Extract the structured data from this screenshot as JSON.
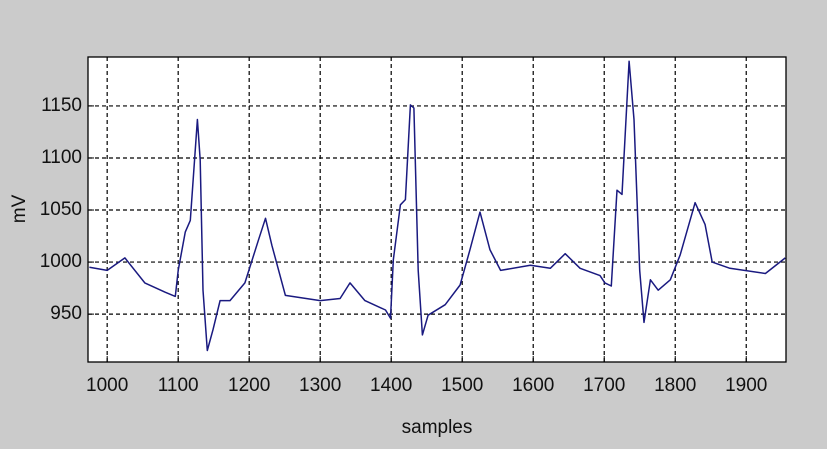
{
  "chart_data": {
    "type": "line",
    "xlabel": "samples",
    "ylabel": "mV",
    "x": [
      975,
      1000,
      1025,
      1053,
      1082,
      1096,
      1100,
      1110,
      1117,
      1127,
      1131,
      1135,
      1141,
      1149,
      1159,
      1173,
      1194,
      1213,
      1223,
      1232,
      1251,
      1300,
      1328,
      1342,
      1363,
      1392,
      1399,
      1403,
      1413,
      1420,
      1427,
      1432,
      1438,
      1444,
      1452,
      1476,
      1497,
      1511,
      1525,
      1539,
      1554,
      1596,
      1624,
      1645,
      1666,
      1694,
      1701,
      1710,
      1718,
      1725,
      1735,
      1742,
      1750,
      1756,
      1765,
      1776,
      1793,
      1807,
      1828,
      1842,
      1852,
      1877,
      1927,
      1955
    ],
    "y": [
      995,
      992,
      1004,
      980,
      971,
      967,
      992,
      1029,
      1040,
      1137,
      1098,
      973,
      915,
      935,
      963,
      963,
      980,
      1021,
      1042,
      1016,
      968,
      963,
      965,
      980,
      963,
      954,
      946,
      1002,
      1055,
      1060,
      1151,
      1148,
      992,
      930,
      949,
      959,
      978,
      1012,
      1048,
      1012,
      992,
      997,
      994,
      1008,
      994,
      987,
      980,
      977,
      1069,
      1065,
      1193,
      1137,
      992,
      942,
      983,
      973,
      983,
      1007,
      1057,
      1036,
      1000,
      994,
      989,
      1004
    ],
    "color": "#1a1a80",
    "xlim": [
      973,
      1956
    ],
    "ylim": [
      904,
      1197
    ],
    "xticks": [
      1000,
      1100,
      1200,
      1300,
      1400,
      1500,
      1600,
      1700,
      1800,
      1900
    ],
    "yticks": [
      950,
      1000,
      1050,
      1100,
      1150
    ],
    "grid": true
  }
}
